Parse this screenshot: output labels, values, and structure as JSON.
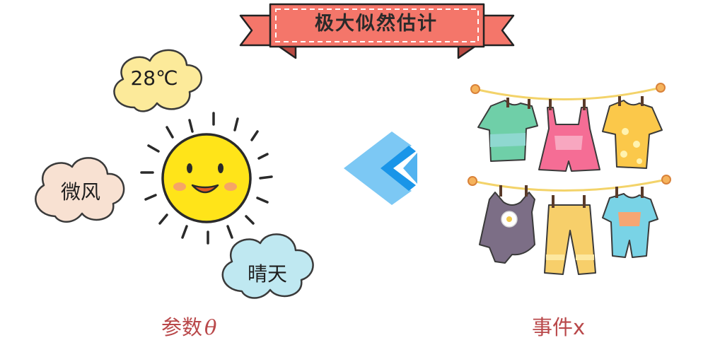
{
  "banner": {
    "title": "极大似然估计"
  },
  "clouds": {
    "temperature": "28℃",
    "wind": "微风",
    "sky": "晴天"
  },
  "captions": {
    "parameter_text": "参数",
    "parameter_symbol": "θ",
    "event": "事件x"
  },
  "icons": {
    "sun": "smiling-sun-icon",
    "arrow": "left-double-chevron-icon",
    "laundry": "clothesline-icon"
  },
  "colors": {
    "banner": "#f4766a",
    "caption": "#b9484a",
    "sun": "#ffe419",
    "arrow_light": "#7cc8f4",
    "arrow_dark": "#1a95e8",
    "cloud_yellow": "#fcea9a",
    "cloud_pink": "#f8e1d2",
    "cloud_blue": "#bfe8f1"
  }
}
